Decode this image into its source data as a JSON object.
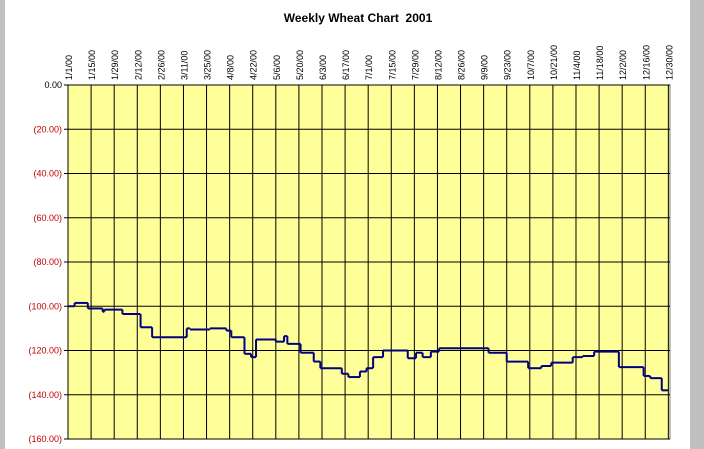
{
  "chart_data": {
    "type": "line",
    "title": "Weekly Wheat Chart  2001",
    "step": true,
    "x": [
      "1/1/00",
      "1/5/00",
      "1/13/00",
      "1/22/00",
      "1/23/00",
      "2/3/00",
      "2/14/00",
      "2/21/00",
      "3/13/00",
      "3/15/00",
      "3/27/00",
      "4/6/00",
      "4/9/00",
      "4/17/00",
      "4/21/00",
      "4/24/00",
      "5/6/00",
      "5/11/00",
      "5/13/00",
      "5/21/00",
      "5/29/00",
      "6/2/00",
      "6/15/00",
      "6/19/00",
      "6/26/00",
      "6/30/00",
      "7/4/00",
      "7/10/00",
      "7/25/00",
      "7/30/00",
      "8/3/00",
      "8/8/00",
      "8/13/00",
      "9/12/00",
      "9/23/00",
      "10/6/00",
      "10/14/00",
      "10/20/00",
      "11/2/00",
      "11/8/00",
      "11/15/00",
      "11/30/00",
      "12/15/00",
      "12/19/00",
      "12/26/00",
      "12/30/00"
    ],
    "series": [
      {
        "color": "#000080",
        "values": [
          -100,
          -98.5,
          -101,
          -102.5,
          -101.5,
          -103.5,
          -109.5,
          -114,
          -110,
          -110.5,
          -110,
          -111,
          -114,
          -121.5,
          -123,
          -115,
          -116,
          -113.5,
          -117,
          -121,
          -125,
          -128,
          -130.5,
          -132,
          -129.5,
          -128,
          -123,
          -120,
          -123.5,
          -121,
          -123,
          -120.5,
          -119,
          -121,
          -125,
          -128,
          -127,
          -125.5,
          -123,
          -122.5,
          -120.5,
          -127.5,
          -131.5,
          -132.5,
          -138,
          -138
        ]
      }
    ],
    "xlim": [
      "1/1/00",
      "12/31/00"
    ],
    "xticks": [
      "1/1/00",
      "1/15/00",
      "1/29/00",
      "2/12/00",
      "2/26/00",
      "3/11/00",
      "3/25/00",
      "4/8/00",
      "4/22/00",
      "5/6/00",
      "5/20/00",
      "6/3/00",
      "6/17/00",
      "7/1/00",
      "7/15/00",
      "7/29/00",
      "8/12/00",
      "8/26/00",
      "9/9/00",
      "9/23/00",
      "10/7/00",
      "10/21/00",
      "11/4/00",
      "11/18/00",
      "12/2/00",
      "12/16/00",
      "12/30/00"
    ],
    "ylim": [
      -160,
      0
    ],
    "yticks": [
      {
        "value": 0,
        "label": "0.00"
      },
      {
        "value": -20,
        "label": "(20.00)"
      },
      {
        "value": -40,
        "label": "(40.00)"
      },
      {
        "value": -60,
        "label": "(60.00)"
      },
      {
        "value": -80,
        "label": "(80.00)"
      },
      {
        "value": -100,
        "label": "(100.00)"
      },
      {
        "value": -120,
        "label": "(120.00)"
      },
      {
        "value": -140,
        "label": "(140.00)"
      },
      {
        "value": -160,
        "label": "(160.00)"
      }
    ],
    "grid": true,
    "plot_color": "#ffff99"
  }
}
